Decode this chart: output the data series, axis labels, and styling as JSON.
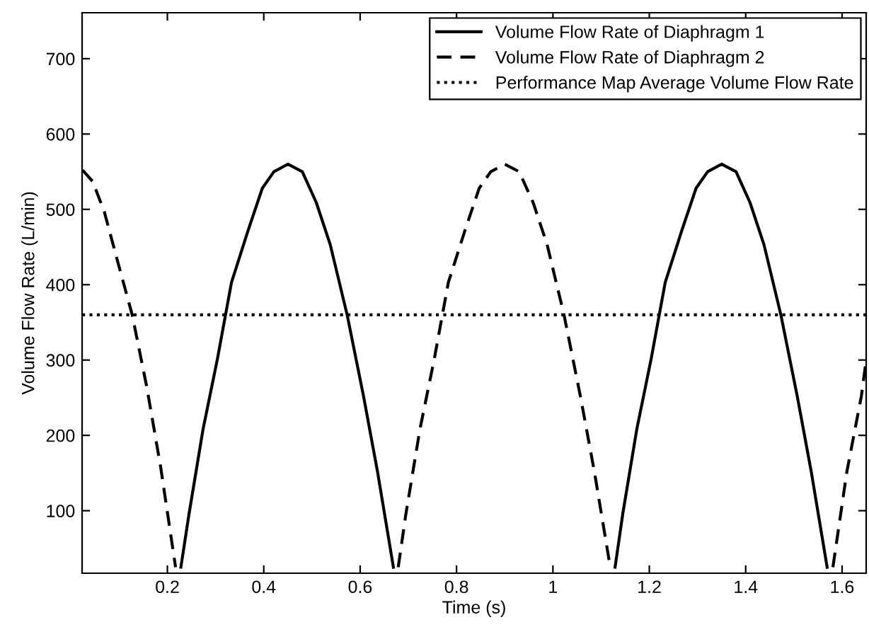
{
  "chart_data": {
    "type": "line",
    "xlabel": "Time (s)",
    "ylabel": "Volume Flow Rate (L/min)",
    "xlim": [
      0.023,
      1.65
    ],
    "ylim": [
      17,
      761
    ],
    "xticks": [
      0.2,
      0.4,
      0.6,
      0.8,
      1,
      1.2,
      1.4,
      1.6
    ],
    "yticks": [
      100,
      200,
      300,
      400,
      500,
      600,
      700
    ],
    "grid": false,
    "legend": "top right",
    "series": [
      {
        "name": "Volume Flow Rate of Diaphragm 1",
        "color": "#000000",
        "line_style": "solid",
        "x": [
          0.228,
          0.245,
          0.274,
          0.304,
          0.333,
          0.367,
          0.397,
          0.421,
          0.45,
          0.48,
          0.509,
          0.538,
          0.573,
          0.607,
          0.636,
          0.669,
          0.9,
          1.129,
          1.145,
          1.174,
          1.204,
          1.233,
          1.267,
          1.297,
          1.321,
          1.35,
          1.38,
          1.409,
          1.438,
          1.473,
          1.507,
          1.536,
          1.569
        ],
        "values": [
          25,
          96,
          208,
          302,
          403,
          471,
          528,
          550,
          560,
          550,
          509,
          453,
          360,
          252,
          152,
          25,
          null,
          25,
          96,
          208,
          302,
          403,
          471,
          528,
          550,
          560,
          550,
          509,
          453,
          360,
          252,
          152,
          25
        ]
      },
      {
        "name": "Volume Flow Rate of Diaphragm 2",
        "color": "#000000",
        "line_style": "dashed",
        "x": [
          0.024,
          0.045,
          0.069,
          0.098,
          0.127,
          0.157,
          0.186,
          0.217,
          0.45,
          0.679,
          0.695,
          0.724,
          0.754,
          0.783,
          0.817,
          0.847,
          0.871,
          0.9,
          0.93,
          0.959,
          0.988,
          1.023,
          1.057,
          1.086,
          1.119,
          1.35,
          1.581,
          1.61,
          1.64,
          1.65
        ],
        "values": [
          552,
          537,
          497,
          428,
          360,
          265,
          158,
          25,
          null,
          25,
          96,
          208,
          302,
          403,
          471,
          528,
          550,
          560,
          550,
          509,
          453,
          360,
          252,
          152,
          25,
          null,
          25,
          152,
          252,
          300
        ]
      }
    ],
    "ref_lines": [
      {
        "axis": "y",
        "value": 360,
        "label": "Performance Map Average Volume Flow Rate",
        "color": "#000000",
        "line_style": "dotted"
      }
    ]
  }
}
